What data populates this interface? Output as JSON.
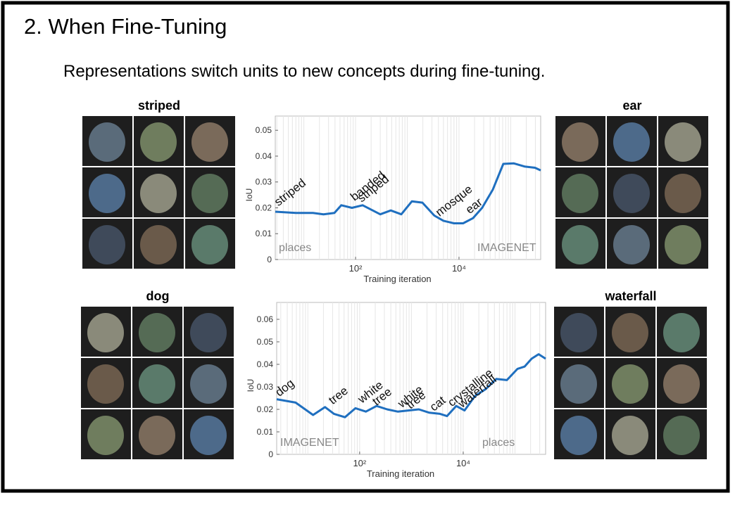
{
  "slide": {
    "title": "2. When Fine-Tuning",
    "subtitle": "Representations switch units to new concepts during fine-tuning."
  },
  "panels": [
    "striped",
    "ear",
    "dog",
    "waterfall"
  ],
  "chart_data": [
    {
      "type": "line",
      "x_label": "Training iteration",
      "y_label": "IoU",
      "log_x": true,
      "grid": true,
      "color": "#1f6fbf",
      "x": [
        2.8,
        7,
        15,
        24,
        39,
        53,
        85,
        137,
        300,
        480,
        765,
        1225,
        1960,
        3330,
        5000,
        8000,
        12000,
        18600,
        28000,
        45000,
        72000,
        115000,
        185000,
        295000,
        380000
      ],
      "values": [
        0.0185,
        0.018,
        0.018,
        0.0175,
        0.018,
        0.021,
        0.02,
        0.021,
        0.0175,
        0.019,
        0.0175,
        0.0225,
        0.022,
        0.017,
        0.015,
        0.014,
        0.014,
        0.016,
        0.02,
        0.027,
        0.037,
        0.0372,
        0.036,
        0.0355,
        0.0345
      ],
      "xlim": [
        2.8,
        380000
      ],
      "ylim": [
        0,
        0.0555
      ],
      "xticks": [
        {
          "value": 100,
          "label": "10²"
        },
        {
          "value": 10000,
          "label": "10⁴"
        }
      ],
      "yticks": [
        0,
        0.01,
        0.02,
        0.03,
        0.04,
        0.05
      ],
      "annotations": [
        {
          "text": "striped",
          "x": 3.2,
          "y": 0.0205
        },
        {
          "text": "banded",
          "x": 95,
          "y": 0.0225
        },
        {
          "text": "striped",
          "x": 130,
          "y": 0.022
        },
        {
          "text": "mosque",
          "x": 4200,
          "y": 0.0165
        },
        {
          "text": "ear",
          "x": 16000,
          "y": 0.0175
        }
      ],
      "logos": [
        "places",
        "IMAGENET"
      ]
    },
    {
      "type": "line",
      "x_label": "Training iteration",
      "y_label": "IoU",
      "log_x": true,
      "grid": true,
      "color": "#1f6fbf",
      "x": [
        2.5,
        5.8,
        12.6,
        21.5,
        32,
        52,
        83,
        132,
        212,
        340,
        543,
        870,
        1390,
        2220,
        3560,
        4860,
        7310,
        10600,
        17000,
        27200,
        43500,
        69800,
        112000,
        153000,
        209000,
        286000,
        390000
      ],
      "values": [
        0.0245,
        0.023,
        0.0175,
        0.021,
        0.018,
        0.0165,
        0.0205,
        0.019,
        0.0215,
        0.02,
        0.019,
        0.0195,
        0.02,
        0.0185,
        0.018,
        0.017,
        0.0215,
        0.0195,
        0.026,
        0.029,
        0.0335,
        0.033,
        0.038,
        0.039,
        0.0425,
        0.0445,
        0.0425
      ],
      "xlim": [
        2.5,
        390000
      ],
      "ylim": [
        0,
        0.0675
      ],
      "xticks": [
        {
          "value": 100,
          "label": "10²"
        },
        {
          "value": 10000,
          "label": "10⁴"
        }
      ],
      "yticks": [
        0,
        0.01,
        0.02,
        0.03,
        0.04,
        0.05,
        0.06
      ],
      "annotations": [
        {
          "text": "dog",
          "x": 2.8,
          "y": 0.0255
        },
        {
          "text": "tree",
          "x": 30,
          "y": 0.022
        },
        {
          "text": "white",
          "x": 110,
          "y": 0.0225
        },
        {
          "text": "tree",
          "x": 210,
          "y": 0.0215
        },
        {
          "text": "white",
          "x": 650,
          "y": 0.0205
        },
        {
          "text": "tree",
          "x": 950,
          "y": 0.02
        },
        {
          "text": "cat",
          "x": 2700,
          "y": 0.019
        },
        {
          "text": "crystalline",
          "x": 6000,
          "y": 0.021
        },
        {
          "text": "waterfall",
          "x": 9500,
          "y": 0.0205
        }
      ],
      "logos": [
        "IMAGENET",
        "places"
      ]
    }
  ]
}
